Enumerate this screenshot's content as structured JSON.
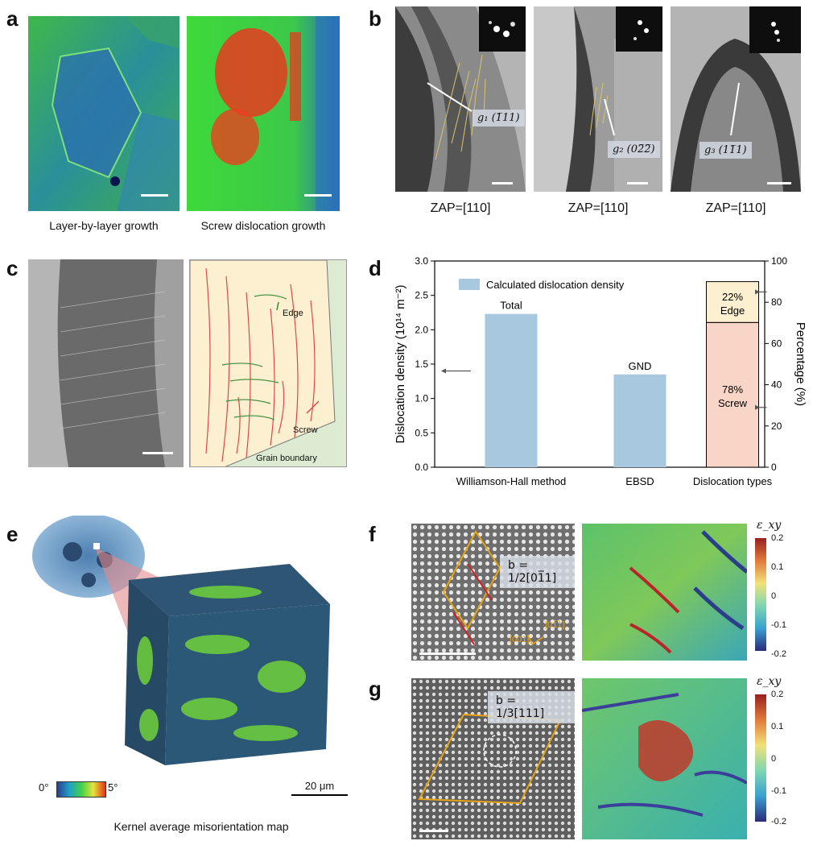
{
  "panels": {
    "a": {
      "label": "a",
      "captions": [
        "Layer-by-layer growth",
        "Screw dislocation growth"
      ]
    },
    "b": {
      "label": "b",
      "zap": [
        "ZAP=[110]",
        "ZAP=[110]",
        "ZAP=[110]"
      ],
      "g_tags": [
        "g₁ (̅11​1)",
        "g₂ (0̅2̅2)",
        "g₃ (1̅1̅1)"
      ]
    },
    "c": {
      "label": "c",
      "annotations": [
        "Edge",
        "Screw",
        "Grain boundary"
      ]
    },
    "d": {
      "label": "d"
    },
    "e": {
      "label": "e",
      "scale_text": "20 μm",
      "colorbar_min": "0°",
      "colorbar_max": "5°",
      "caption": "Kernel average misorientation map"
    },
    "f": {
      "label": "f",
      "burgers": "b = 1/2[01̅1]",
      "dir1": "[01̅1]",
      "dir2": "[001]",
      "cb_title": "ε_xy",
      "cb_ticks": [
        "0.2",
        "0.1",
        "0",
        "-0.1",
        "-0.2"
      ]
    },
    "g": {
      "label": "g",
      "burgers": "b = 1/3[111]",
      "cb_title": "ε_xy",
      "cb_ticks": [
        "0.2",
        "0.1",
        "0",
        "-0.1",
        "-0.2"
      ]
    }
  },
  "b_g_display": [
    "g₁ (1̅11)",
    "g₂ (02̅2̅)",
    "g₃ (11̅1)"
  ],
  "chart_data": {
    "type": "bar",
    "categories": [
      "Williamson-Hall method",
      "EBSD",
      "Dislocation types"
    ],
    "ylabel": "Dislocation density (10¹⁴ m⁻²)",
    "ylabel_right": "Percentage (%)",
    "ylim": [
      0,
      3.0
    ],
    "ylim_right": [
      0,
      100
    ],
    "yticks": [
      "0.0",
      "0.5",
      "1.0",
      "1.5",
      "2.0",
      "2.5",
      "3.0"
    ],
    "yticks_right": [
      "0",
      "20",
      "40",
      "60",
      "80",
      "100"
    ],
    "legend": "Calculated dislocation density",
    "bars": [
      {
        "category": "Williamson-Hall method",
        "value": 2.23,
        "label": "Total"
      },
      {
        "category": "EBSD",
        "value": 1.35,
        "label": "GND"
      }
    ],
    "stacked": {
      "category": "Dislocation types",
      "total": 2.7,
      "segments": [
        {
          "name": "Screw",
          "percent": 78,
          "label": "78%",
          "label2": "Screw",
          "color": "#f8d5c6"
        },
        {
          "name": "Edge",
          "percent": 22,
          "label": "22%",
          "label2": "Edge",
          "color": "#fdf0d0"
        }
      ]
    },
    "bar_color": "#a7c8df"
  }
}
